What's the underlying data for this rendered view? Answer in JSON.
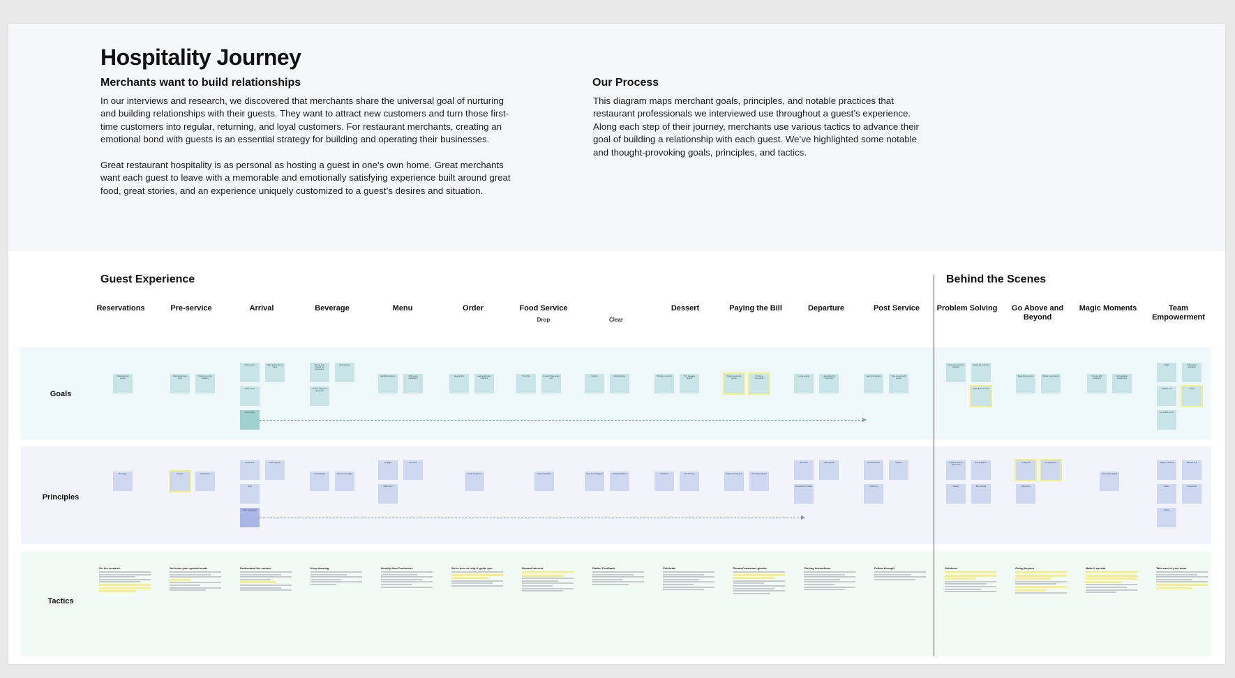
{
  "intro": {
    "title": "Hospitality Journey",
    "left_heading": "Merchants want to build relationships",
    "left_p1": "In our interviews and research, we discovered that merchants share the universal goal of nurturing and building relationships with their guests. They want to attract new customers and turn those first-time customers into regular, returning, and loyal customers. For restaurant merchants, creating an emotional bond with guests is an essential strategy for building and operating their businesses.",
    "left_p2": "Great restaurant hospitality is as personal as hosting a guest in one’s own home. Great merchants want each guest to leave with a memorable and emotionally satisfying experience built around great food, great stories, and an experience uniquely customized to a guest’s desires and situation.",
    "right_heading": "Our Process",
    "right_p1": "This diagram maps merchant goals, principles, and notable practices that restaurant professionals we interviewed use throughout a guest’s experience. Along each step of their journey, merchants use various tactics to advance their goal of building a  relationship with each guest. We’ve highlighted some notable and thought-provoking goals, principles, and tactics."
  },
  "sections": {
    "guest_experience": "Guest Experience",
    "behind_the_scenes": "Behind the Scenes"
  },
  "columns": [
    "Reservations",
    "Pre-service",
    "Arrival",
    "Beverage",
    "Menu",
    "Order",
    "Food Service",
    "",
    "Dessert",
    "Paying the Bill",
    "Departure",
    "Post Service",
    "Problem Solving",
    "Go Above and Beyond",
    "Magic Moments",
    "Team Empowerment"
  ],
  "subcolumns": {
    "drop": "Drop",
    "clear": "Clear"
  },
  "rows": {
    "goals": "Goals",
    "principles": "Principles",
    "tactics": "Tactics"
  },
  "colors": {
    "goals_band": "#eef8fa",
    "principles_band": "#f1f4fb",
    "tactics_band": "#f1faf4",
    "goal_sticky": "#c9e4e6",
    "principle_sticky": "#cdd8f0",
    "highlight": "#f3f08c"
  },
  "goal_stickies": [
    "Understand our guests",
    "Welcome all who enter",
    "Check in on their wellbeing",
    "Tell our story",
    "Make people feel at home",
    "Set the tone",
    "Tell our story",
    "Tell our story through our beverages",
    "Demonstrate",
    "Ensure things are going well",
    "Explicitly welcome",
    "Build guest anticipation",
    "Deeper dive",
    "Help guests feel confident",
    "Tie off the",
    "Ensure things going well",
    "Realize",
    "Ensure things",
    "Provide a moment",
    "Turn mistakes around",
    "Reward awesome guests",
    "Provide a memorable",
    "Leave guests",
    "Leave a lasting impression",
    "Learn and improve",
    "Stay in touch with guests",
    "Serve and overcome problems",
    "Satisfy the customer",
    "Show them we care",
    "Show them we care",
    "Satisfy the customer",
    "Connect with customers",
    "Unforgettable experiences",
    "Build",
    "Tell industry standards",
    "Product and",
    "Create",
    "Low staff turnover"
  ],
  "principle_stickies": [
    "Be ready",
    "Prepare",
    "Each guest",
    "Remember",
    "Prefer guests",
    "Stay",
    "Make people feel",
    "Acknowledge",
    "Observe and adjust",
    "Engage",
    "Give them",
    "Make them",
    "Guide our guests",
    "Know the details",
    "Keep them engaged",
    "Prompt problems",
    "Celebrate",
    "Think strong",
    "Make sure they see",
    "Don't make guests",
    "Give them",
    "Thank guests",
    "Do whatever it takes",
    "Review service",
    "Prepare",
    "Follow up",
    "Problems are an opportunity",
    "Be transparent",
    "Always",
    "Be proactive",
    "Go beyond",
    "Small gestures",
    "Make sure",
    "Unexpected delight",
    "Inspire your team",
    "Educate and",
    "Safety",
    "Competitive",
    "Define"
  ],
  "tactic_headings": [
    "On the research",
    "We know your special needs",
    "Understand the context",
    "Keep learning",
    "Identify New Customers",
    "We're here to help & guide you",
    "Reward interest",
    "Gather Feedback",
    "Celebrate",
    "Reward awesome guests",
    "Closing interactions",
    "Follow through",
    "Solutions",
    "Going beyond",
    "Make it special",
    "Take care of your team"
  ]
}
